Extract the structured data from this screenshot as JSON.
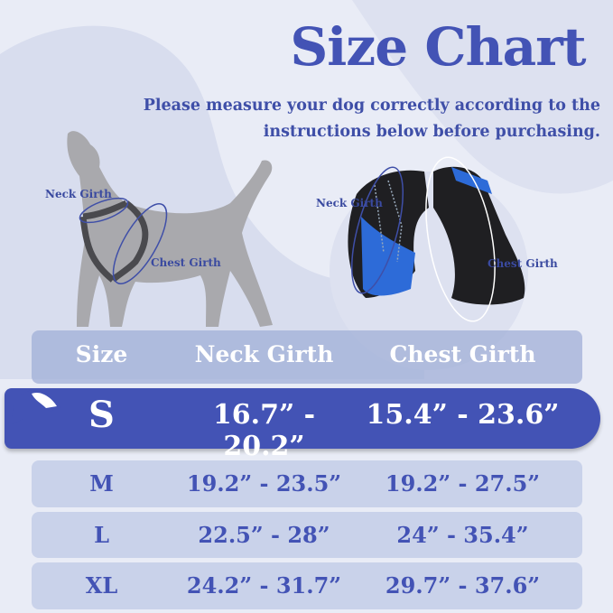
{
  "header": {
    "title": "Size Chart",
    "subtitle_line1": "Please measure your dog correctly according to the",
    "subtitle_line2": "instructions below before purchasing."
  },
  "illustrations": {
    "dog_labels": {
      "neck": "Neck Girth",
      "chest": "Chest Girth"
    },
    "harness_labels": {
      "neck": "Neck Girth",
      "chest": "Chest Girth"
    }
  },
  "table": {
    "columns": [
      "Size",
      "Neck Girth",
      "Chest Girth"
    ],
    "rows": [
      {
        "size": "S",
        "neck": "16.7” - 20.2”",
        "chest": "15.4” - 23.6”",
        "highlighted": true
      },
      {
        "size": "M",
        "neck": "19.2” - 23.5”",
        "chest": "19.2” - 27.5”"
      },
      {
        "size": "L",
        "neck": "22.5” - 28”",
        "chest": "24” - 35.4”"
      },
      {
        "size": "XL",
        "neck": "24.2” - 31.7”",
        "chest": "29.7” - 37.6”"
      }
    ]
  },
  "colors": {
    "accent": "#4353b5",
    "background": "#e9ecf6",
    "row": "#c9d2ea",
    "silhouette": "#a9a9ad"
  }
}
